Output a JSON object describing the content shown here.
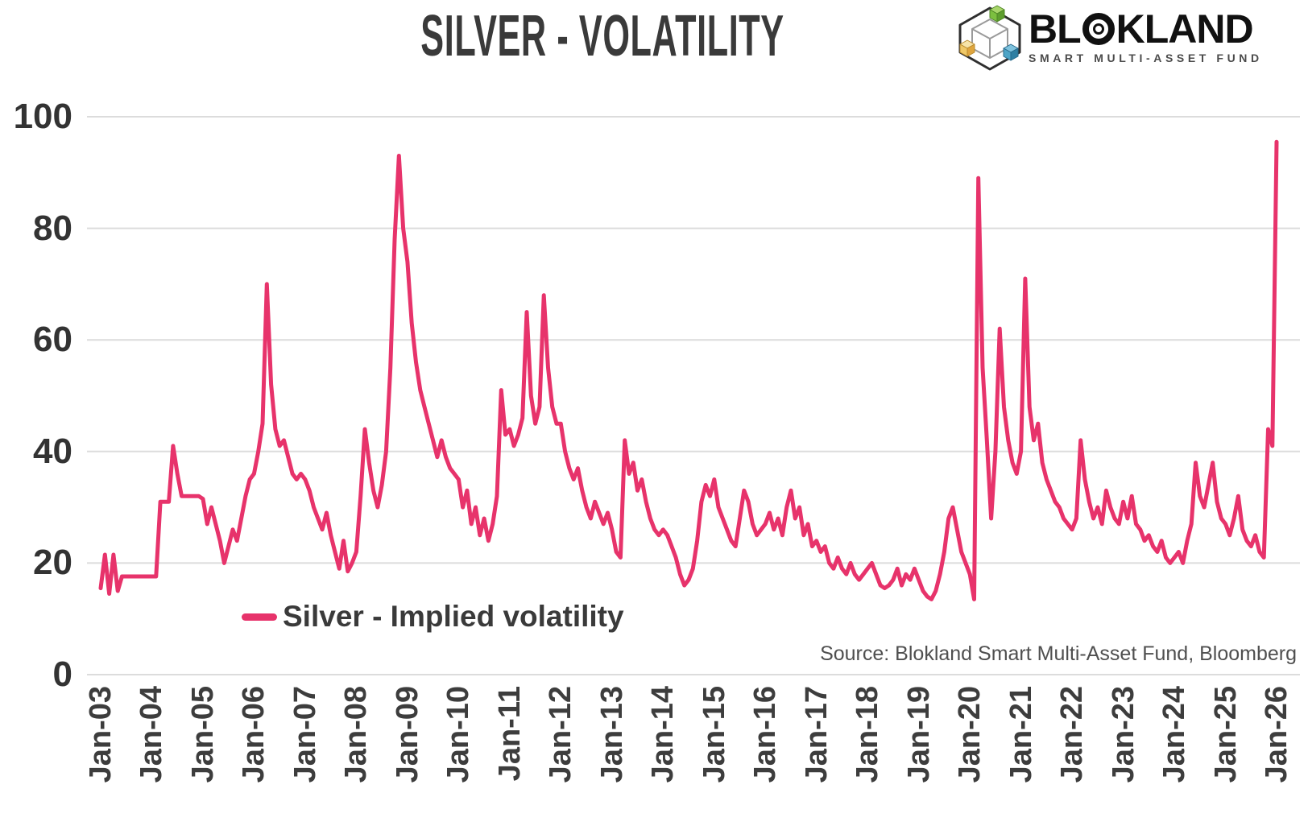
{
  "header": {
    "title": "SILVER - VOLATILITY"
  },
  "logo": {
    "name_pre": "BL",
    "name_post": "KLAND",
    "full_name": "BLOKLAND",
    "subtitle": "SMART MULTI-ASSET FUND",
    "cube_colors": {
      "green": "#7CBF3F",
      "yellow": "#EFC35C",
      "blue": "#4DA4C6"
    }
  },
  "legend": {
    "label": "Silver - Implied volatility"
  },
  "source": {
    "text": "Source: Blokland Smart Multi-Asset Fund, Bloomberg"
  },
  "colors": {
    "line": "#E7336B",
    "grid": "#DCDCDC",
    "title_text": "#3A3A3A",
    "axis_text": "#3D3D3D",
    "source_text": "#4F4F4F"
  },
  "chart_data": {
    "type": "line",
    "title": "SILVER - VOLATILITY",
    "x_tick_labels": [
      "Jan-03",
      "Jan-04",
      "Jan-05",
      "Jan-06",
      "Jan-07",
      "Jan-08",
      "Jan-09",
      "Jan-10",
      "Jan-11",
      "Jan-12",
      "Jan-13",
      "Jan-14",
      "Jan-15",
      "Jan-16",
      "Jan-17",
      "Jan-18",
      "Jan-19",
      "Jan-20",
      "Jan-21",
      "Jan-22",
      "Jan-23",
      "Jan-24",
      "Jan-25",
      "Jan-26"
    ],
    "y_ticks": [
      0,
      20,
      40,
      60,
      80,
      100
    ],
    "ylim": [
      0,
      100
    ],
    "grid": "horizontal",
    "legend_position": "bottom-left",
    "series": [
      {
        "name": "Silver - Implied volatility",
        "color": "#E7336B",
        "start": "Jan-2003",
        "frequency": "monthly",
        "values": [
          15.5,
          21.5,
          14.5,
          21.5,
          15,
          17.6,
          17.6,
          17.6,
          17.6,
          17.6,
          17.6,
          17.6,
          17.6,
          17.6,
          31,
          31,
          31,
          41,
          36,
          32,
          32,
          32,
          32,
          32,
          31.5,
          27,
          30,
          27,
          24,
          20,
          23,
          26,
          24,
          28,
          32,
          35,
          36,
          40,
          45,
          70,
          52,
          44,
          41,
          42,
          39,
          36,
          35,
          36,
          35,
          33,
          30,
          28,
          26,
          29,
          25,
          22,
          19,
          24,
          18.5,
          20,
          22,
          32,
          44,
          38,
          33,
          30,
          34,
          40,
          55,
          78,
          93,
          80,
          74,
          63,
          56,
          51,
          48,
          45,
          42,
          39,
          42,
          39,
          37,
          36,
          35,
          30,
          33,
          27,
          30,
          25,
          28,
          24,
          27,
          32,
          51,
          43,
          44,
          41,
          43,
          46,
          65,
          50,
          45,
          48,
          68,
          55,
          48,
          45,
          45,
          40,
          37,
          35,
          37,
          33,
          30,
          28,
          31,
          29,
          27,
          29,
          26,
          22,
          21,
          42,
          36,
          38,
          33,
          35,
          31,
          28,
          26,
          25,
          26,
          25,
          23,
          21,
          18,
          16,
          17,
          19,
          24,
          31,
          34,
          32,
          35,
          30,
          28,
          26,
          24,
          23,
          28,
          33,
          31,
          27,
          25,
          26,
          27,
          29,
          26,
          28,
          25,
          30,
          33,
          28,
          30,
          25,
          27,
          23,
          24,
          22,
          23,
          20,
          19,
          21,
          19,
          18,
          20,
          18,
          17,
          18,
          19,
          20,
          18,
          16,
          15.5,
          16,
          17,
          19,
          16,
          18,
          17,
          19,
          17,
          15,
          14,
          13.5,
          15,
          18,
          22,
          28,
          30,
          26,
          22,
          20,
          18,
          13.5,
          89,
          55,
          42,
          28,
          40,
          62,
          48,
          42,
          38,
          36,
          40,
          71,
          48,
          42,
          45,
          38,
          35,
          33,
          31,
          30,
          28,
          27,
          26,
          28,
          42,
          35,
          31,
          28,
          30,
          27,
          33,
          30,
          28,
          27,
          31,
          28,
          32,
          27,
          26,
          24,
          25,
          23,
          22,
          24,
          21,
          20,
          21,
          22,
          20,
          24,
          27,
          38,
          32,
          30,
          34,
          38,
          31,
          28,
          27,
          25,
          28,
          32,
          26,
          24,
          23,
          25,
          22,
          21,
          44,
          41,
          95.5
        ]
      }
    ]
  }
}
